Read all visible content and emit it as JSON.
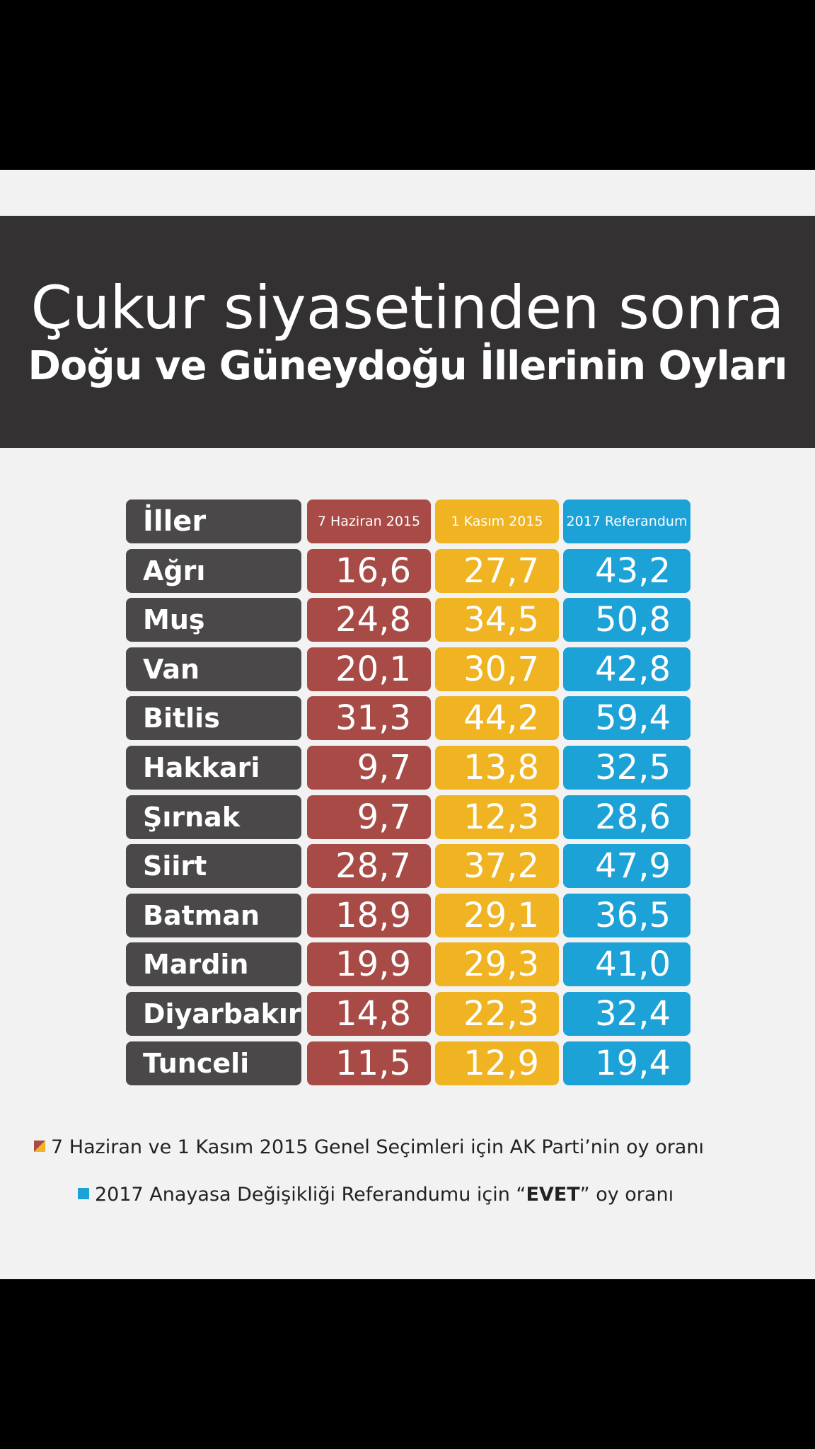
{
  "title_line1": "Çukur siyasetinden sonra",
  "title_line2": "Doğu ve Güneydoğu İllerinin Oyları",
  "colors": {
    "header_band": "#333131",
    "province_cell": "#4a4848",
    "haziran": "#a84b46",
    "kasim": "#f0b321",
    "referandum": "#1da2d8"
  },
  "chart_data": {
    "type": "table",
    "columns": [
      "İller",
      "7 Haziran 2015",
      "1 Kasım 2015",
      "2017 Referandum"
    ],
    "rows": [
      {
        "province": "Ağrı",
        "values": [
          "16,6",
          "27,7",
          "43,2"
        ]
      },
      {
        "province": "Muş",
        "values": [
          "24,8",
          "34,5",
          "50,8"
        ]
      },
      {
        "province": "Van",
        "values": [
          "20,1",
          "30,7",
          "42,8"
        ]
      },
      {
        "province": "Bitlis",
        "values": [
          "31,3",
          "44,2",
          "59,4"
        ]
      },
      {
        "province": "Hakkari",
        "values": [
          "9,7",
          "13,8",
          "32,5"
        ]
      },
      {
        "province": "Şırnak",
        "values": [
          "9,7",
          "12,3",
          "28,6"
        ]
      },
      {
        "province": "Siirt",
        "values": [
          "28,7",
          "37,2",
          "47,9"
        ]
      },
      {
        "province": "Batman",
        "values": [
          "18,9",
          "29,1",
          "36,5"
        ]
      },
      {
        "province": "Mardin",
        "values": [
          "19,9",
          "29,3",
          "41,0"
        ]
      },
      {
        "province": "Diyarbakır",
        "values": [
          "14,8",
          "22,3",
          "32,4"
        ]
      },
      {
        "province": "Tunceli",
        "values": [
          "11,5",
          "12,9",
          "19,4"
        ]
      }
    ]
  },
  "legend": {
    "line1": "7 Haziran ve 1 Kasım 2015 Genel Seçimleri için AK Parti’nin oy oranı",
    "line2_before": "2017 Anayasa Değişikliği Referandumu için “",
    "line2_bold": "EVET",
    "line2_after": "” oy oranı",
    "icon1": "red-yellow-square-icon",
    "icon2": "blue-square-icon"
  }
}
